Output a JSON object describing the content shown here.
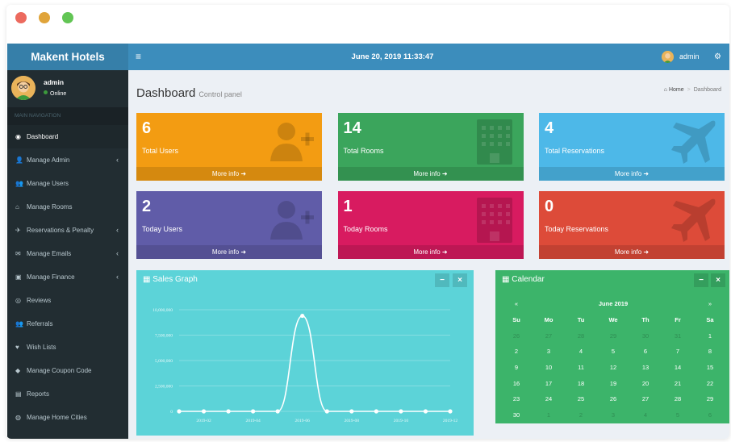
{
  "app": {
    "brand": "Makent Hotels"
  },
  "topbar": {
    "menu_icon": "≡",
    "datetime": "June 20, 2019 11:33:47",
    "user": "admin",
    "gear_icon": "⚙"
  },
  "user_panel": {
    "name": "admin",
    "status": "Online"
  },
  "nav": {
    "header": "MAIN NAVIGATION",
    "items": [
      {
        "label": "Dashboard",
        "icon": "dashboard-icon",
        "glyph": "◉",
        "chevron": ""
      },
      {
        "label": "Manage Admin",
        "icon": "user-plus-icon",
        "glyph": "👤",
        "chevron": "‹"
      },
      {
        "label": "Manage Users",
        "icon": "users-icon",
        "glyph": "👥",
        "chevron": ""
      },
      {
        "label": "Manage Rooms",
        "icon": "home-icon",
        "glyph": "⌂",
        "chevron": ""
      },
      {
        "label": "Reservations & Penalty",
        "icon": "plane-icon",
        "glyph": "✈",
        "chevron": "‹"
      },
      {
        "label": "Manage Emails",
        "icon": "envelope-icon",
        "glyph": "✉",
        "chevron": "‹"
      },
      {
        "label": "Manage Finance",
        "icon": "money-icon",
        "glyph": "▣",
        "chevron": "‹"
      },
      {
        "label": "Reviews",
        "icon": "eye-icon",
        "glyph": "◎",
        "chevron": ""
      },
      {
        "label": "Referrals",
        "icon": "users-icon",
        "glyph": "👥",
        "chevron": ""
      },
      {
        "label": "Wish Lists",
        "icon": "heart-icon",
        "glyph": "♥",
        "chevron": ""
      },
      {
        "label": "Manage Coupon Code",
        "icon": "tag-icon",
        "glyph": "◆",
        "chevron": ""
      },
      {
        "label": "Reports",
        "icon": "file-icon",
        "glyph": "▤",
        "chevron": ""
      },
      {
        "label": "Manage Home Cities",
        "icon": "globe-icon",
        "glyph": "◍",
        "chevron": ""
      }
    ]
  },
  "page": {
    "title": "Dashboard",
    "subtitle": "Control panel"
  },
  "breadcrumb": {
    "home": "Home",
    "current": "Dashboard"
  },
  "stats": [
    {
      "value": "6",
      "label": "Total Users",
      "footer": "More info ➜",
      "color": "#f39c12",
      "icon": "user-plus-icon"
    },
    {
      "value": "14",
      "label": "Total Rooms",
      "footer": "More info ➜",
      "color": "#3ba55c",
      "icon": "building-icon"
    },
    {
      "value": "4",
      "label": "Total Reservations",
      "footer": "More info ➜",
      "color": "#4db8e8",
      "icon": "plane-icon"
    },
    {
      "value": "2",
      "label": "Today Users",
      "footer": "More info ➜",
      "color": "#605ca8",
      "icon": "user-plus-icon"
    },
    {
      "value": "1",
      "label": "Today Rooms",
      "footer": "More info ➜",
      "color": "#d81b60",
      "icon": "building-icon"
    },
    {
      "value": "0",
      "label": "Today Reservations",
      "footer": "More info ➜",
      "color": "#dd4b39",
      "icon": "plane-icon"
    }
  ],
  "sales_graph": {
    "title": "Sales Graph",
    "minimize": "−",
    "close": "×",
    "color": "#5cd3d8",
    "chart_data": {
      "type": "line",
      "x": [
        "2019-01",
        "2019-02",
        "2019-03",
        "2019-04",
        "2019-05",
        "2019-06",
        "2019-07",
        "2019-08",
        "2019-09",
        "2019-10",
        "2019-11",
        "2019-12"
      ],
      "xticks": [
        "2019-02",
        "2019-04",
        "2019-06",
        "2019-08",
        "2019-10",
        "2019-12"
      ],
      "values": [
        0,
        0,
        0,
        0,
        0,
        9400000,
        0,
        0,
        0,
        0,
        0,
        0
      ],
      "yticks": [
        0,
        2500000,
        5000000,
        7500000,
        10000000
      ],
      "ytick_labels": [
        "0",
        "2,500,000",
        "5,000,000",
        "7,500,000",
        "10,000,000"
      ],
      "ylim": [
        0,
        10000000
      ],
      "grid": true
    }
  },
  "calendar": {
    "title": "Calendar",
    "minimize": "−",
    "close": "×",
    "month": "June 2019",
    "prev": "«",
    "next": "»",
    "color": "#3cb46a",
    "dow": [
      "Su",
      "Mo",
      "Tu",
      "We",
      "Th",
      "Fr",
      "Sa"
    ],
    "weeks": [
      [
        {
          "d": "26",
          "m": true
        },
        {
          "d": "27",
          "m": true
        },
        {
          "d": "28",
          "m": true
        },
        {
          "d": "29",
          "m": true
        },
        {
          "d": "30",
          "m": true
        },
        {
          "d": "31",
          "m": true
        },
        {
          "d": "1",
          "m": false
        }
      ],
      [
        {
          "d": "2",
          "m": false
        },
        {
          "d": "3",
          "m": false
        },
        {
          "d": "4",
          "m": false
        },
        {
          "d": "5",
          "m": false
        },
        {
          "d": "6",
          "m": false
        },
        {
          "d": "7",
          "m": false
        },
        {
          "d": "8",
          "m": false
        }
      ],
      [
        {
          "d": "9",
          "m": false
        },
        {
          "d": "10",
          "m": false
        },
        {
          "d": "11",
          "m": false
        },
        {
          "d": "12",
          "m": false
        },
        {
          "d": "13",
          "m": false
        },
        {
          "d": "14",
          "m": false
        },
        {
          "d": "15",
          "m": false
        }
      ],
      [
        {
          "d": "16",
          "m": false
        },
        {
          "d": "17",
          "m": false
        },
        {
          "d": "18",
          "m": false
        },
        {
          "d": "19",
          "m": false
        },
        {
          "d": "20",
          "m": false
        },
        {
          "d": "21",
          "m": false
        },
        {
          "d": "22",
          "m": false
        }
      ],
      [
        {
          "d": "23",
          "m": false
        },
        {
          "d": "24",
          "m": false
        },
        {
          "d": "25",
          "m": false
        },
        {
          "d": "26",
          "m": false
        },
        {
          "d": "27",
          "m": false
        },
        {
          "d": "28",
          "m": false
        },
        {
          "d": "29",
          "m": false
        }
      ],
      [
        {
          "d": "30",
          "m": false
        },
        {
          "d": "1",
          "m": true
        },
        {
          "d": "2",
          "m": true
        },
        {
          "d": "3",
          "m": true
        },
        {
          "d": "4",
          "m": true
        },
        {
          "d": "5",
          "m": true
        },
        {
          "d": "6",
          "m": true
        }
      ]
    ]
  }
}
